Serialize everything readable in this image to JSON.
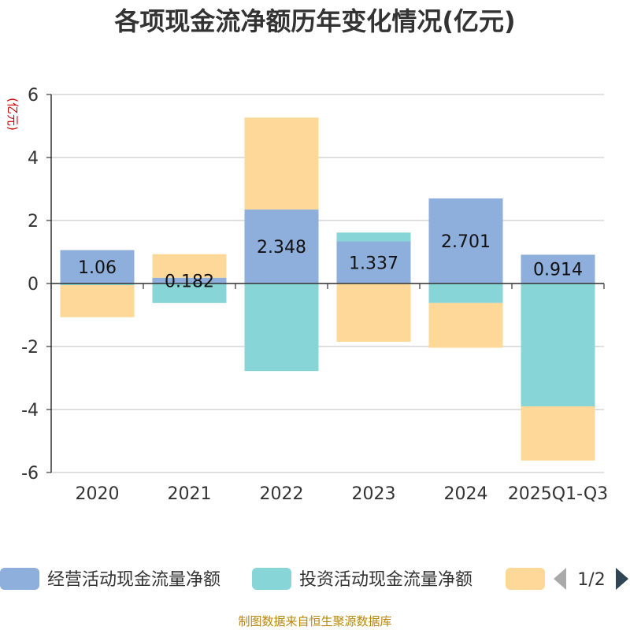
{
  "chart_data": {
    "type": "bar",
    "stacked": true,
    "title": "各项现金流净额历年变化情况(亿元)",
    "ylabel": "(亿元)",
    "xlabel": "",
    "categories": [
      "2020",
      "2021",
      "2022",
      "2023",
      "2024",
      "2025Q1-Q3"
    ],
    "ylim": [
      -6,
      6
    ],
    "yticks": [
      6,
      4,
      2,
      0,
      -2,
      -4,
      -6
    ],
    "grid": true,
    "series": [
      {
        "name": "经营活动现金流量净额",
        "color": "#8eaedb",
        "values": [
          1.06,
          0.182,
          2.348,
          1.337,
          2.701,
          0.914
        ]
      },
      {
        "name": "投资活动现金流量净额",
        "color": "#88d5d8",
        "values": [
          -0.05,
          -0.62,
          -2.78,
          0.28,
          -0.62,
          -3.9
        ]
      },
      {
        "name": "",
        "color": "#fed898",
        "values": [
          -1.02,
          0.75,
          2.92,
          -1.85,
          -1.42,
          -1.72
        ]
      }
    ],
    "data_labels": [
      "1.06",
      "0.182",
      "2.348",
      "1.337",
      "2.701",
      "0.914"
    ],
    "legend": {
      "position": "bottom",
      "page": "1/2"
    }
  },
  "footer": {
    "source": "制图数据来自恒生聚源数据库"
  },
  "colors": {
    "axis": "#333333",
    "grid": "#cccccc",
    "title": "#333333",
    "footer": "#b8860b",
    "pager_active": "#2f4554",
    "pager_inactive": "#aaaaaa"
  }
}
